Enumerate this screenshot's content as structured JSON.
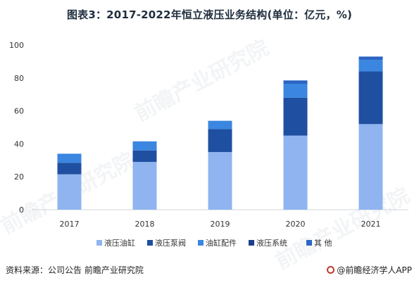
{
  "title": "图表3：2017-2022年恒立液压业务结构(单位：亿元，%)",
  "watermark": "前瞻产业研究院",
  "footer": {
    "source": "资料来源：公司公告 前瞻产业研究院",
    "brand": "@前瞻经济学人APP"
  },
  "chart_data": {
    "type": "bar",
    "stacked": true,
    "categories": [
      "2017",
      "2018",
      "2019",
      "2020",
      "2021"
    ],
    "series": [
      {
        "name": "液压油缸",
        "color": "#8fb4f0",
        "values": [
          21.5,
          29,
          35,
          45,
          52
        ]
      },
      {
        "name": "液压泵阀",
        "color": "#1f4fa0",
        "values": [
          7,
          7,
          14,
          23,
          32
        ]
      },
      {
        "name": "油缸配件",
        "color": "#3a86e0",
        "values": [
          5.5,
          5.5,
          5,
          8.5,
          7
        ]
      },
      {
        "name": "液压系统",
        "color": "#1a3f8f",
        "values": [
          0,
          0,
          0,
          0,
          0
        ]
      },
      {
        "name": "其 他",
        "color": "#2b65c4",
        "values": [
          0,
          0,
          0,
          2,
          2
        ]
      }
    ],
    "ylim": [
      0,
      100
    ],
    "yticks": [
      0,
      20,
      40,
      60,
      80,
      100
    ],
    "legend_position": "bottom",
    "grid": false
  }
}
